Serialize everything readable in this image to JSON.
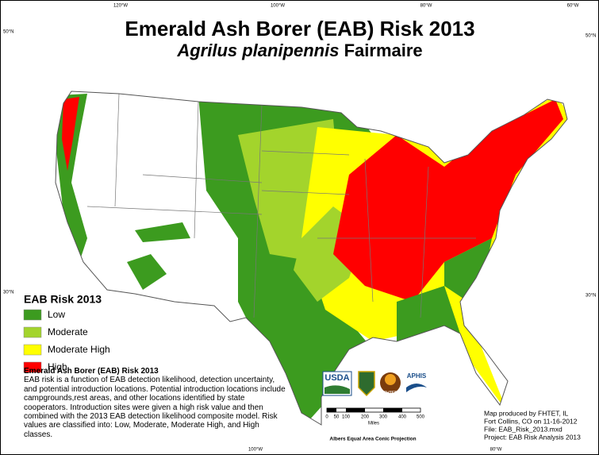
{
  "title": "Emerald Ash Borer (EAB) Risk 2013",
  "subtitle": {
    "species": "Agrilus planipennis",
    "author": "Fairmaire"
  },
  "graticule": {
    "top": [
      "120°W",
      "100°W",
      "80°W",
      "60°W"
    ],
    "left": [
      "50°N",
      "30°N"
    ],
    "right": [
      "50°N",
      "30°N"
    ],
    "bottom": [
      "100°W",
      "80°W"
    ]
  },
  "legend": {
    "title": "EAB Risk 2013",
    "items": [
      {
        "label": "Low",
        "color": "#3c9b1f"
      },
      {
        "label": "Moderate",
        "color": "#a3d42c"
      },
      {
        "label": "Moderate High",
        "color": "#ffff00"
      },
      {
        "label": "High",
        "color": "#ff0000"
      }
    ]
  },
  "description": {
    "title": "Emerald Ash Borer (EAB) Risk 2013",
    "body": "EAB risk is a function of EAB detection likelihood, detection uncertainty, and potential introduction locations. Potential introduction locations include campgrounds,rest areas, and other locations identified by state cooperators. Introduction sites were given a high risk value and then combined with the 2013 EAB detection likelihood composite model. Risk values are classified into: Low, Moderate, Moderate High, and High classes."
  },
  "logos": [
    "USDA",
    "FHTET",
    "APHIS"
  ],
  "scale_bar": {
    "labels": [
      "0",
      "50",
      "100",
      "200",
      "300",
      "400",
      "500"
    ],
    "unit": "Miles"
  },
  "projection": "Albers Equal Area Conic Projection",
  "credits": [
    "Map produced by FHTET, IL",
    "Fort Collins, CO on 11-16-2012",
    "File: EAB_Risk_2013.mxd",
    "Project: EAB Risk Analysis 2013"
  ]
}
